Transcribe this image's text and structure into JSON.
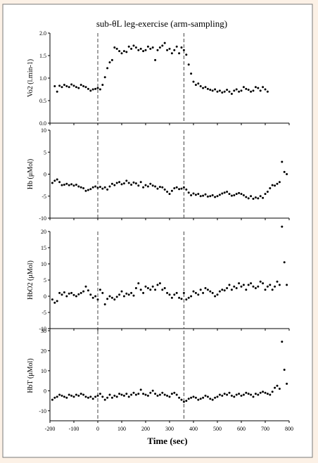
{
  "figure": {
    "background": "#fcf1e6",
    "panel_background": "#ffffff",
    "frame_color": "#7a7a7a",
    "title": "sub-θL leg-exercise (arm-sampling)",
    "xlabel": "Time (sec)"
  },
  "chart_data": [
    {
      "type": "scatter",
      "ylabel": "Vo2 (l.min-1)",
      "xlim": [
        -200,
        800
      ],
      "ylim": [
        0,
        2.0
      ],
      "xticks": [
        -200,
        -100,
        0,
        100,
        200,
        300,
        400,
        500,
        600,
        700,
        800
      ],
      "yticks": [
        0.0,
        0.5,
        1.0,
        1.5,
        2.0
      ],
      "ytick_labels": [
        "0.0",
        "0.5",
        "1.0",
        "1.5",
        "2.0"
      ],
      "vlines": [
        0,
        360
      ],
      "series": [
        {
          "x": [
            -180,
            -170,
            -160,
            -150,
            -140,
            -130,
            -120,
            -110,
            -100,
            -90,
            -80,
            -70,
            -60,
            -50,
            -40,
            -30,
            -20,
            -10,
            0,
            10,
            20,
            30,
            40,
            50,
            60,
            70,
            80,
            90,
            100,
            110,
            120,
            130,
            140,
            150,
            160,
            170,
            180,
            190,
            200,
            210,
            220,
            230,
            240,
            250,
            260,
            270,
            280,
            290,
            300,
            310,
            320,
            330,
            340,
            350,
            360,
            370,
            380,
            390,
            400,
            410,
            420,
            430,
            440,
            450,
            460,
            470,
            480,
            490,
            500,
            510,
            520,
            530,
            540,
            550,
            560,
            570,
            580,
            590,
            600,
            610,
            620,
            630,
            640,
            650,
            660,
            670,
            680,
            690,
            700,
            710
          ],
          "y": [
            0.82,
            0.7,
            0.83,
            0.8,
            0.85,
            0.82,
            0.8,
            0.86,
            0.83,
            0.8,
            0.78,
            0.85,
            0.82,
            0.8,
            0.76,
            0.72,
            0.75,
            0.76,
            0.78,
            0.75,
            0.85,
            1.02,
            1.22,
            1.35,
            1.4,
            1.68,
            1.65,
            1.6,
            1.55,
            1.6,
            1.58,
            1.7,
            1.65,
            1.72,
            1.68,
            1.62,
            1.65,
            1.6,
            1.62,
            1.7,
            1.65,
            1.68,
            1.4,
            1.62,
            1.68,
            1.72,
            1.78,
            1.62,
            1.65,
            1.55,
            1.62,
            1.7,
            1.55,
            1.68,
            1.62,
            1.52,
            1.3,
            1.1,
            0.92,
            0.85,
            0.88,
            0.82,
            0.78,
            0.8,
            0.76,
            0.74,
            0.72,
            0.75,
            0.7,
            0.72,
            0.68,
            0.7,
            0.74,
            0.7,
            0.65,
            0.72,
            0.75,
            0.7,
            0.72,
            0.8,
            0.76,
            0.74,
            0.7,
            0.72,
            0.8,
            0.78,
            0.72,
            0.8,
            0.75,
            0.7
          ]
        }
      ]
    },
    {
      "type": "scatter",
      "ylabel": "Hb (μMol)",
      "xlim": [
        -200,
        800
      ],
      "ylim": [
        -10,
        10
      ],
      "xticks": [
        -200,
        -100,
        0,
        100,
        200,
        300,
        400,
        500,
        600,
        700,
        800
      ],
      "yticks": [
        -10,
        -5,
        0,
        5,
        10
      ],
      "ytick_labels": [
        "-10",
        "-5",
        "0",
        "5",
        "10"
      ],
      "vlines": [
        0,
        360
      ],
      "series": [
        {
          "x": [
            -190,
            -180,
            -170,
            -160,
            -150,
            -140,
            -130,
            -120,
            -110,
            -100,
            -90,
            -80,
            -70,
            -60,
            -50,
            -40,
            -30,
            -20,
            -10,
            0,
            10,
            20,
            30,
            40,
            50,
            60,
            70,
            80,
            90,
            100,
            110,
            120,
            130,
            140,
            150,
            160,
            170,
            180,
            190,
            200,
            210,
            220,
            230,
            240,
            250,
            260,
            270,
            280,
            290,
            300,
            310,
            320,
            330,
            340,
            350,
            360,
            370,
            380,
            390,
            400,
            410,
            420,
            430,
            440,
            450,
            460,
            470,
            480,
            490,
            500,
            510,
            520,
            530,
            540,
            550,
            560,
            570,
            580,
            590,
            600,
            610,
            620,
            630,
            640,
            650,
            660,
            670,
            680,
            690,
            700,
            710,
            720,
            730,
            740,
            750,
            760,
            770,
            780,
            790
          ],
          "y": [
            -2.0,
            -1.5,
            -1.2,
            -1.8,
            -2.5,
            -2.4,
            -2.2,
            -2.5,
            -2.3,
            -2.6,
            -2.4,
            -2.8,
            -3.0,
            -3.2,
            -3.8,
            -3.6,
            -3.4,
            -3.0,
            -2.8,
            -3.1,
            -2.9,
            -3.3,
            -3.0,
            -3.5,
            -2.8,
            -2.2,
            -2.5,
            -2.0,
            -1.8,
            -2.3,
            -2.1,
            -1.5,
            -2.0,
            -2.4,
            -1.9,
            -2.1,
            -2.6,
            -1.8,
            -3.0,
            -2.5,
            -2.8,
            -2.2,
            -2.6,
            -2.8,
            -3.3,
            -2.9,
            -3.0,
            -3.5,
            -4.0,
            -4.5,
            -3.8,
            -3.2,
            -3.0,
            -3.4,
            -3.3,
            -3.0,
            -3.5,
            -4.2,
            -4.8,
            -4.4,
            -4.7,
            -4.5,
            -5.0,
            -4.9,
            -4.6,
            -5.1,
            -5.0,
            -4.8,
            -5.2,
            -5.0,
            -4.7,
            -4.4,
            -4.2,
            -4.0,
            -4.5,
            -4.9,
            -4.8,
            -4.5,
            -4.3,
            -4.5,
            -4.8,
            -5.2,
            -5.5,
            -5.0,
            -5.6,
            -5.3,
            -5.5,
            -5.0,
            -5.4,
            -4.5,
            -4.0,
            -3.2,
            -2.5,
            -2.6,
            -2.2,
            -1.8,
            2.8,
            0.5,
            0.0
          ]
        }
      ]
    },
    {
      "type": "scatter",
      "ylabel": "HbO2 (μMol)",
      "xlim": [
        -200,
        800
      ],
      "ylim": [
        -10,
        20
      ],
      "xticks": [
        -200,
        -100,
        0,
        100,
        200,
        300,
        400,
        500,
        600,
        700,
        800
      ],
      "yticks": [
        -10,
        -5,
        0,
        5,
        10,
        15,
        20
      ],
      "ytick_labels": [
        "-10",
        "-5",
        "0",
        "5",
        "10",
        "15",
        "20"
      ],
      "vlines": [
        0,
        360
      ],
      "series": [
        {
          "x": [
            -190,
            -180,
            -170,
            -160,
            -150,
            -140,
            -130,
            -120,
            -110,
            -100,
            -90,
            -80,
            -70,
            -60,
            -50,
            -40,
            -30,
            -20,
            -10,
            0,
            10,
            20,
            30,
            40,
            50,
            60,
            70,
            80,
            90,
            100,
            110,
            120,
            130,
            140,
            150,
            160,
            170,
            180,
            190,
            200,
            210,
            220,
            230,
            240,
            250,
            260,
            270,
            280,
            290,
            300,
            310,
            320,
            330,
            340,
            350,
            360,
            370,
            380,
            390,
            400,
            410,
            420,
            430,
            440,
            450,
            460,
            470,
            480,
            490,
            500,
            510,
            520,
            530,
            540,
            550,
            560,
            570,
            580,
            590,
            600,
            610,
            620,
            630,
            640,
            650,
            660,
            670,
            680,
            690,
            700,
            710,
            720,
            730,
            740,
            750,
            760,
            770,
            780,
            790
          ],
          "y": [
            -1.0,
            -2.0,
            -1.5,
            1.0,
            0.5,
            1.2,
            0.0,
            0.8,
            1.0,
            0.4,
            0.0,
            0.6,
            1.0,
            1.5,
            3.0,
            1.8,
            0.5,
            -0.5,
            0.0,
            -1.0,
            2.0,
            1.0,
            -2.5,
            -0.8,
            0.0,
            -0.5,
            -1.0,
            -0.2,
            0.5,
            1.5,
            0.0,
            0.8,
            0.5,
            1.0,
            0.2,
            2.5,
            4.0,
            2.0,
            1.0,
            3.0,
            2.5,
            2.0,
            3.0,
            2.0,
            3.5,
            4.0,
            2.0,
            2.5,
            1.0,
            0.5,
            -0.5,
            0.5,
            1.0,
            -0.5,
            -0.8,
            1.0,
            -1.0,
            -0.5,
            0.0,
            1.5,
            1.0,
            0.5,
            2.0,
            1.0,
            2.5,
            2.0,
            1.5,
            1.0,
            0.0,
            0.5,
            1.5,
            2.0,
            1.8,
            2.5,
            3.5,
            2.0,
            3.0,
            2.5,
            4.0,
            3.0,
            3.5,
            2.0,
            3.5,
            4.0,
            3.0,
            2.5,
            3.0,
            4.5,
            4.0,
            2.0,
            3.0,
            3.5,
            2.0,
            3.0,
            4.5,
            3.5,
            21.5,
            10.5,
            3.5
          ]
        }
      ]
    },
    {
      "type": "scatter",
      "ylabel": "HbT (μMol)",
      "xlim": [
        -200,
        800
      ],
      "ylim": [
        -15,
        30
      ],
      "xticks": [
        -200,
        -100,
        0,
        100,
        200,
        300,
        400,
        500,
        600,
        700,
        800
      ],
      "yticks": [
        -10,
        0,
        10,
        20,
        30
      ],
      "ytick_labels": [
        "-10",
        "0",
        "10",
        "20",
        "30"
      ],
      "vlines": [
        0,
        360
      ],
      "series": [
        {
          "x": [
            -190,
            -180,
            -170,
            -160,
            -150,
            -140,
            -130,
            -120,
            -110,
            -100,
            -90,
            -80,
            -70,
            -60,
            -50,
            -40,
            -30,
            -20,
            -10,
            0,
            10,
            20,
            30,
            40,
            50,
            60,
            70,
            80,
            90,
            100,
            110,
            120,
            130,
            140,
            150,
            160,
            170,
            180,
            190,
            200,
            210,
            220,
            230,
            240,
            250,
            260,
            270,
            280,
            290,
            300,
            310,
            320,
            330,
            340,
            350,
            360,
            370,
            380,
            390,
            400,
            410,
            420,
            430,
            440,
            450,
            460,
            470,
            480,
            490,
            500,
            510,
            520,
            530,
            540,
            550,
            560,
            570,
            580,
            590,
            600,
            610,
            620,
            630,
            640,
            650,
            660,
            670,
            680,
            690,
            700,
            710,
            720,
            730,
            740,
            750,
            760,
            770,
            780,
            790
          ],
          "y": [
            -4.5,
            -3.5,
            -3.0,
            -2.0,
            -2.5,
            -3.0,
            -3.5,
            -2.0,
            -2.5,
            -3.0,
            -2.0,
            -2.5,
            -1.5,
            -2.0,
            -3.0,
            -3.5,
            -3.0,
            -4.0,
            -3.0,
            -2.5,
            -1.5,
            -3.0,
            -4.5,
            -3.5,
            -2.0,
            -3.5,
            -2.5,
            -3.0,
            -1.5,
            -2.0,
            -2.5,
            -1.5,
            -3.0,
            -2.0,
            -1.0,
            -2.0,
            -1.5,
            0.5,
            -1.5,
            -2.0,
            -2.5,
            -1.0,
            0.0,
            -1.5,
            -2.5,
            -2.0,
            -1.0,
            -2.0,
            -2.5,
            -3.0,
            -1.5,
            -1.0,
            -2.0,
            -3.5,
            -4.5,
            -5.5,
            -5.0,
            -4.0,
            -3.5,
            -3.0,
            -3.5,
            -4.5,
            -4.0,
            -3.5,
            -2.5,
            -3.0,
            -4.0,
            -4.5,
            -3.5,
            -3.0,
            -2.0,
            -2.5,
            -1.5,
            -2.0,
            -1.0,
            -2.5,
            -3.0,
            -2.0,
            -1.5,
            -2.5,
            -2.0,
            -1.0,
            -1.5,
            -2.0,
            -3.0,
            -1.5,
            -2.0,
            -1.0,
            -0.5,
            -1.0,
            -1.5,
            -2.0,
            -0.5,
            1.5,
            2.5,
            1.0,
            24.5,
            10.5,
            3.5
          ]
        }
      ]
    }
  ]
}
